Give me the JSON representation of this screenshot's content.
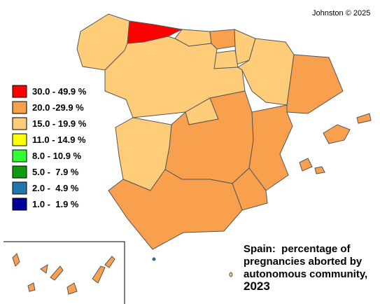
{
  "credit": "Johnston © 2025",
  "legend": [
    {
      "label": "30.0 - 49.9 %",
      "color": "#ff0000"
    },
    {
      "label": "20.0 -29.9 %",
      "color": "#f9a04e"
    },
    {
      "label": "15.0 - 19.9 %",
      "color": "#ffcc7a"
    },
    {
      "label": "11.0 - 14.9 %",
      "color": "#ffff00"
    },
    {
      "label": "8.0 - 10.9 %",
      "color": "#33ff33"
    },
    {
      "label": "5.0 -  7.9 %",
      "color": "#119911"
    },
    {
      "label": "2.0 -  4.9 %",
      "color": "#2277aa"
    },
    {
      "label": "1.0 -  1.9 %",
      "color": "#000099"
    }
  ],
  "title": [
    "Spain:  percentage of",
    "pregnancies aborted by",
    "autonomous community,",
    "2023"
  ]
}
